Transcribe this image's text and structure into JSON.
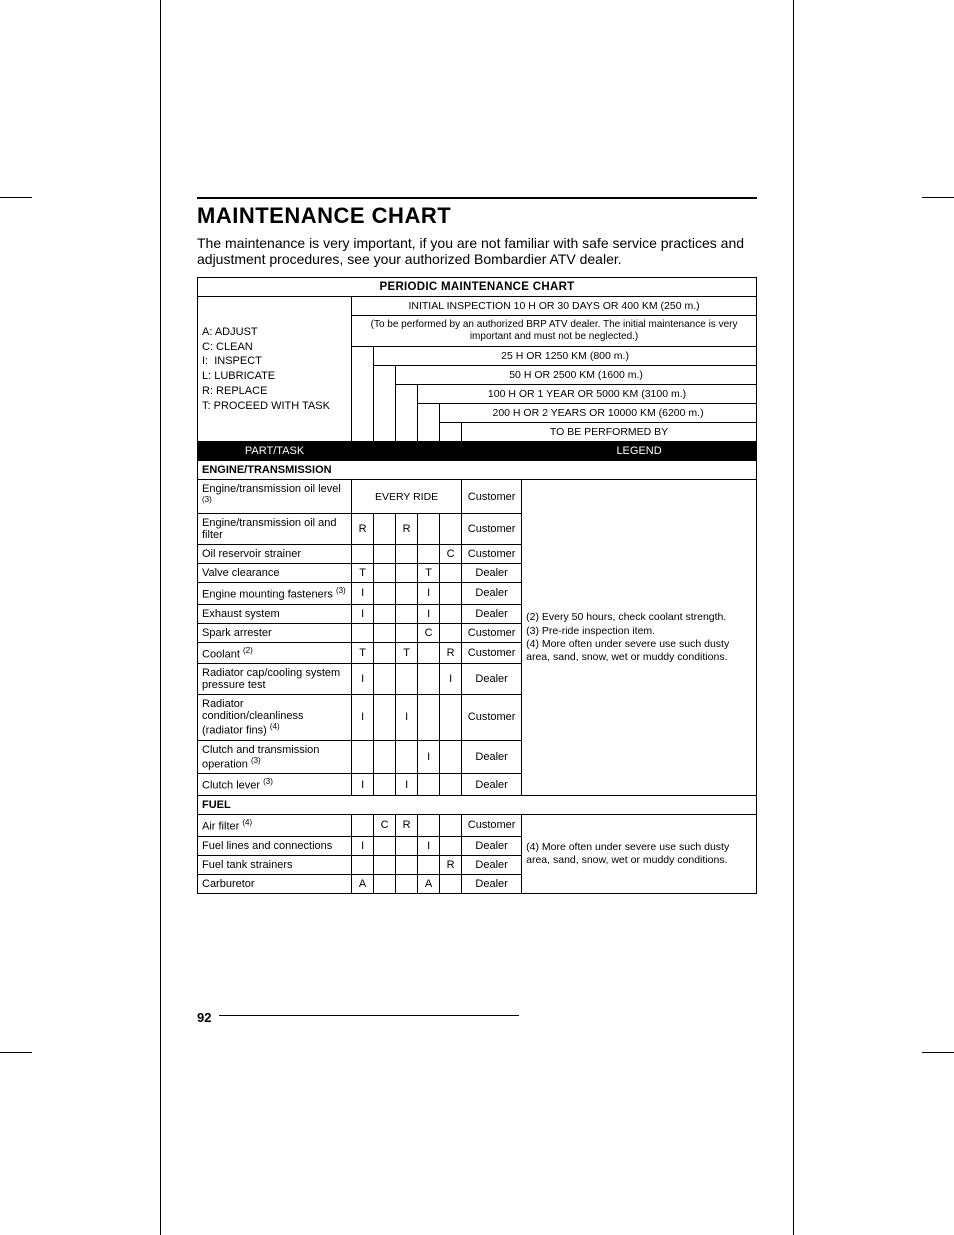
{
  "page_number": "92",
  "title": "MAINTENANCE CHART",
  "intro": "The maintenance is very important, if you are not familiar with safe service practices and adjustment procedures, see your authorized Bombardier ATV dealer.",
  "chart_title": "PERIODIC MAINTENANCE CHART",
  "legend_lines": {
    "a": "A: ADJUST",
    "c": "C: CLEAN",
    "i": "I:  INSPECT",
    "l": "L: LUBRICATE",
    "r": "R: REPLACE",
    "t": "T: PROCEED WITH TASK"
  },
  "intervals": {
    "initial": "INITIAL INSPECTION 10 H OR 30 DAYS OR 400 KM (250 m.)",
    "initial_note": "(To be performed by an authorized BRP ATV dealer. The initial maintenance is very important and must not be neglected.)",
    "i25": "25 H OR 1250 KM (800 m.)",
    "i50": "50 H OR 2500 KM (1600 m.)",
    "i100": "100 H OR 1 YEAR OR 5000 KM (3100 m.)",
    "i200": "200 H OR 2 YEARS OR 10000 KM (6200 m.)",
    "performed_by": "TO BE PERFORMED BY"
  },
  "header_row": {
    "part_task": "PART/TASK",
    "legend": "LEGEND"
  },
  "sections": {
    "engine": "ENGINE/TRANSMISSION",
    "fuel": "FUEL"
  },
  "every_ride": "EVERY RIDE",
  "engine_rows": {
    "oil_level": {
      "task": "Engine/transmission oil level",
      "sup": "(3)",
      "c0": "",
      "c1": "",
      "c2": "",
      "c3": "",
      "c4": "",
      "perf": "Customer"
    },
    "oil_filter": {
      "task": "Engine/transmission oil and filter",
      "c0": "R",
      "c1": "",
      "c2": "R",
      "c3": "",
      "c4": "",
      "perf": "Customer"
    },
    "strainer": {
      "task": "Oil reservoir strainer",
      "c0": "",
      "c1": "",
      "c2": "",
      "c3": "",
      "c4": "C",
      "perf": "Customer"
    },
    "valve": {
      "task": "Valve clearance",
      "c0": "T",
      "c1": "",
      "c2": "",
      "c3": "T",
      "c4": "",
      "perf": "Dealer"
    },
    "mounts": {
      "task": "Engine mounting fasteners",
      "sup": "(3)",
      "c0": "I",
      "c1": "",
      "c2": "",
      "c3": "I",
      "c4": "",
      "perf": "Dealer"
    },
    "exhaust": {
      "task": "Exhaust system",
      "c0": "I",
      "c1": "",
      "c2": "",
      "c3": "I",
      "c4": "",
      "perf": "Dealer"
    },
    "spark": {
      "task": "Spark arrester",
      "c0": "",
      "c1": "",
      "c2": "",
      "c3": "C",
      "c4": "",
      "perf": "Customer"
    },
    "coolant": {
      "task": "Coolant",
      "sup": "(2)",
      "c0": "T",
      "c1": "",
      "c2": "T",
      "c3": "",
      "c4": "R",
      "perf": "Customer"
    },
    "radcap": {
      "task": "Radiator cap/cooling system pressure test",
      "c0": "I",
      "c1": "",
      "c2": "",
      "c3": "",
      "c4": "I",
      "perf": "Dealer"
    },
    "radcond": {
      "task": "Radiator condition/cleanliness (radiator fins)",
      "sup": "(4)",
      "c0": "I",
      "c1": "",
      "c2": "I",
      "c3": "",
      "c4": "",
      "perf": "Customer"
    },
    "clutch_op": {
      "task": "Clutch and transmission operation",
      "sup": "(3)",
      "c0": "",
      "c1": "",
      "c2": "",
      "c3": "I",
      "c4": "",
      "perf": "Dealer"
    },
    "clutch_lever": {
      "task": "Clutch lever",
      "sup": "(3)",
      "c0": "I",
      "c1": "",
      "c2": "I",
      "c3": "",
      "c4": "",
      "perf": "Dealer"
    }
  },
  "engine_notes": "(2) Every 50 hours, check coolant strength.\n(3) Pre-ride inspection item.\n(4) More often under severe use such dusty area, sand, snow, wet or muddy conditions.",
  "fuel_rows": {
    "air_filter": {
      "task": "Air filter",
      "sup": "(4)",
      "c0": "",
      "c1": "C",
      "c2": "R",
      "c3": "",
      "c4": "",
      "perf": "Customer"
    },
    "fuel_lines": {
      "task": "Fuel lines and connections",
      "c0": "I",
      "c1": "",
      "c2": "",
      "c3": "I",
      "c4": "",
      "perf": "Dealer"
    },
    "strainers": {
      "task": "Fuel tank strainers",
      "c0": "",
      "c1": "",
      "c2": "",
      "c3": "",
      "c4": "R",
      "perf": "Dealer"
    },
    "carb": {
      "task": "Carburetor",
      "c0": "A",
      "c1": "",
      "c2": "",
      "c3": "A",
      "c4": "",
      "perf": "Dealer"
    }
  },
  "fuel_notes": "(4) More often under severe use such dusty area, sand, snow, wet or muddy conditions."
}
